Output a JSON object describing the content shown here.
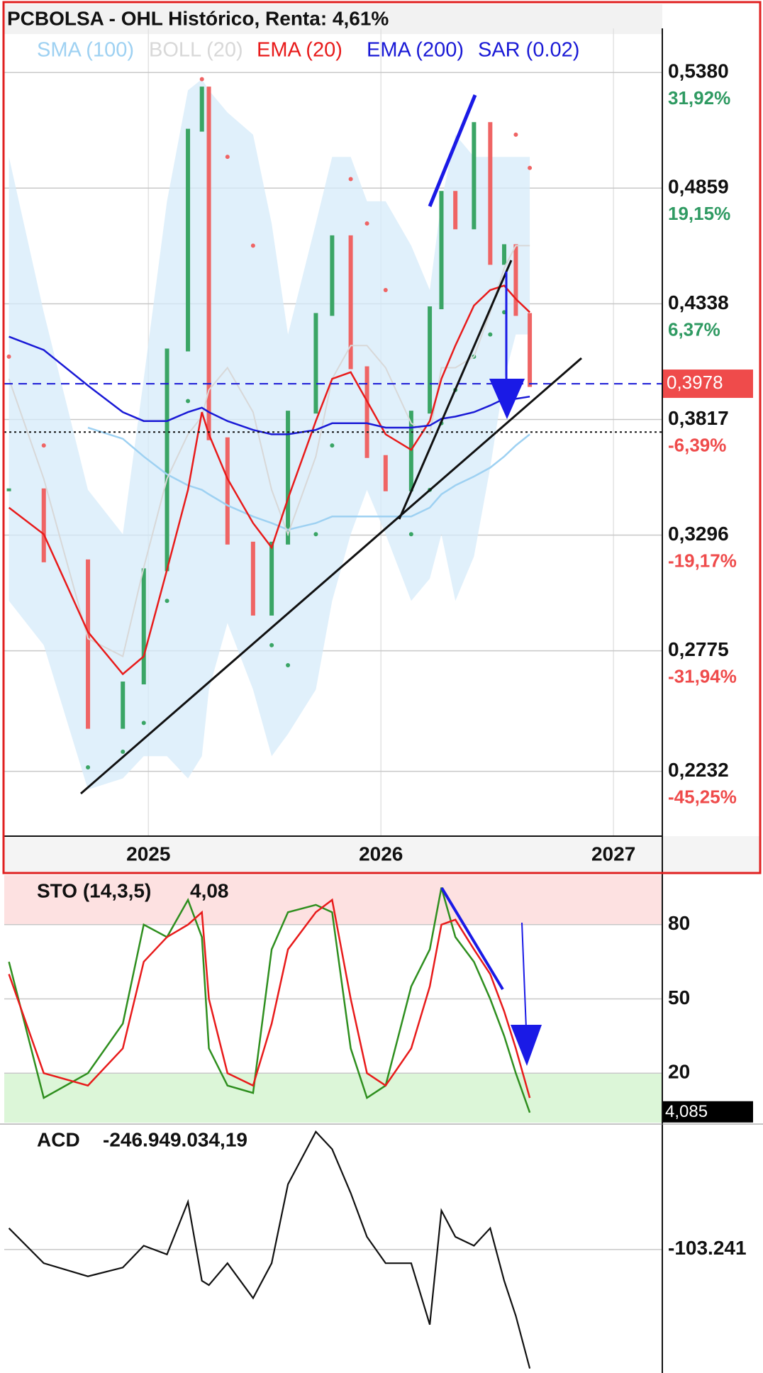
{
  "chart_data": [
    {
      "type": "ohl",
      "title": "PCBOLSA - OHL Histórico, Renta: 4,61%",
      "x": [
        2024.4,
        2024.55,
        2024.74,
        2024.89,
        2024.98,
        2025.08,
        2025.17,
        2025.23,
        2025.26,
        2025.34,
        2025.45,
        2025.53,
        2025.6,
        2025.72,
        2025.79,
        2025.87,
        2025.94,
        2026.02,
        2026.13,
        2026.21,
        2026.26,
        2026.32,
        2026.4,
        2026.47,
        2026.53,
        2026.58,
        2026.64
      ],
      "xlim": [
        2024.38,
        2027.21
      ],
      "xticks": [
        2025,
        2026,
        2027
      ],
      "ylim": [
        0.194,
        0.555
      ],
      "yticks": [
        {
          "value": 0.538,
          "label": "0,5380"
        },
        {
          "value": 0.4859,
          "label": "0,4859"
        },
        {
          "value": 0.4338,
          "label": "0,4338"
        },
        {
          "value": 0.3817,
          "label": "0,3817"
        },
        {
          "value": 0.3296,
          "label": "0,3296"
        },
        {
          "value": 0.2775,
          "label": "0,2775"
        },
        {
          "value": 0.2232,
          "label": "0,2232"
        }
      ],
      "return_labels": [
        {
          "value": 31.92,
          "label": "31,92%"
        },
        {
          "value": 19.15,
          "label": "19,15%"
        },
        {
          "value": 6.37,
          "label": "6,37%"
        },
        {
          "value": -6.39,
          "label": "-6,39%"
        },
        {
          "value": -19.17,
          "label": "-19,17%"
        },
        {
          "value": -31.94,
          "label": "-31,94%"
        },
        {
          "value": -45.25,
          "label": "-45,25%"
        }
      ],
      "price": {
        "color_up": "#3aa565",
        "color_down": "#ef6464",
        "values": [
          0.35,
          0.318,
          0.243,
          0.263,
          0.314,
          0.413,
          0.512,
          0.531,
          0.373,
          0.326,
          0.294,
          0.326,
          0.385,
          0.429,
          0.464,
          0.405,
          0.365,
          0.35,
          0.385,
          0.432,
          0.484,
          0.468,
          0.515,
          0.452,
          0.46,
          0.429,
          0.397
        ]
      },
      "series": [
        {
          "name": "SMA (100)",
          "color": "#9ed1f2",
          "style": "line",
          "values": [
            null,
            null,
            0.378,
            0.373,
            0.365,
            0.357,
            0.352,
            0.35,
            0.348,
            0.343,
            0.338,
            0.335,
            0.332,
            0.335,
            0.338,
            0.338,
            0.338,
            0.338,
            0.338,
            0.342,
            0.348,
            0.352,
            0.356,
            0.36,
            0.365,
            0.37,
            0.375
          ]
        },
        {
          "name": "BOLL (20)",
          "color": "#d8d8d8",
          "band_color": "#d6ebf9",
          "style": "band",
          "values": [
            0.4,
            0.355,
            0.283,
            0.275,
            0.315,
            0.355,
            0.375,
            0.383,
            0.395,
            0.405,
            0.385,
            0.35,
            0.33,
            0.365,
            0.4,
            0.415,
            0.415,
            0.405,
            0.38,
            0.375,
            0.405,
            0.405,
            0.41,
            0.43,
            0.45,
            0.46,
            0.46
          ],
          "upper": [
            0.5,
            0.43,
            0.35,
            0.33,
            0.4,
            0.48,
            0.53,
            0.535,
            0.53,
            0.52,
            0.51,
            0.47,
            0.42,
            0.47,
            0.5,
            0.5,
            0.48,
            0.48,
            0.46,
            0.44,
            0.48,
            0.51,
            0.5,
            0.5,
            0.5,
            0.5,
            0.5
          ],
          "lower": [
            0.3,
            0.28,
            0.215,
            0.22,
            0.23,
            0.23,
            0.22,
            0.23,
            0.26,
            0.29,
            0.26,
            0.23,
            0.24,
            0.26,
            0.3,
            0.33,
            0.35,
            0.33,
            0.3,
            0.31,
            0.33,
            0.3,
            0.32,
            0.36,
            0.4,
            0.42,
            0.42
          ]
        },
        {
          "name": "EMA (20)",
          "color": "#e81b1b",
          "style": "line",
          "values": [
            0.342,
            0.33,
            0.286,
            0.267,
            0.275,
            0.314,
            0.35,
            0.385,
            0.375,
            0.355,
            0.335,
            0.324,
            0.346,
            0.381,
            0.4,
            0.403,
            0.39,
            0.375,
            0.368,
            0.381,
            0.4,
            0.415,
            0.433,
            0.44,
            0.442,
            0.436,
            0.43
          ]
        },
        {
          "name": "EMA (200)",
          "color": "#1a1ad6",
          "style": "line",
          "values": [
            0.419,
            0.413,
            0.397,
            0.385,
            0.381,
            0.381,
            0.385,
            0.387,
            0.385,
            0.381,
            0.377,
            0.375,
            0.375,
            0.377,
            0.38,
            0.38,
            0.38,
            0.378,
            0.378,
            0.379,
            0.382,
            0.383,
            0.385,
            0.388,
            0.391,
            0.391,
            0.392
          ]
        },
        {
          "name": "SAR (0.02)",
          "color": "#1a1ad6",
          "style": "dots",
          "color_up": "#3aa565",
          "color_down": "#ef6464",
          "values": [
            0.41,
            0.37,
            0.225,
            0.232,
            0.245,
            0.3,
            0.39,
            0.535,
            0.53,
            0.5,
            0.46,
            0.28,
            0.271,
            0.33,
            0.37,
            0.49,
            0.47,
            0.44,
            0.33,
            0.35,
            0.38,
            0.395,
            0.41,
            0.42,
            0.43,
            0.51,
            0.495
          ]
        }
      ],
      "last_price": {
        "value": 0.3978,
        "label": "0,3978"
      },
      "dotted_level": 0.376
    },
    {
      "type": "stochastic",
      "title": "STO (14,3,5)",
      "title_value": "4,08",
      "x": [
        2024.4,
        2024.55,
        2024.74,
        2024.89,
        2024.98,
        2025.08,
        2025.17,
        2025.23,
        2025.26,
        2025.34,
        2025.45,
        2025.53,
        2025.6,
        2025.72,
        2025.79,
        2025.87,
        2025.94,
        2026.02,
        2026.13,
        2026.21,
        2026.26,
        2026.32,
        2026.4,
        2026.47,
        2026.53,
        2026.58,
        2026.64
      ],
      "xlim": [
        2024.38,
        2027.21
      ],
      "ylim": [
        0,
        100
      ],
      "yticks": [
        80,
        50,
        20
      ],
      "ytick_colors": [
        "#e81b1b",
        "#111111",
        "#1a9a1a"
      ],
      "overbought": 80,
      "oversold": 20,
      "series": [
        {
          "color": "#2f8f1f",
          "values": [
            65,
            10,
            20,
            40,
            80,
            75,
            90,
            75,
            30,
            15,
            12,
            70,
            85,
            88,
            85,
            30,
            10,
            15,
            55,
            70,
            95,
            75,
            65,
            50,
            35,
            20,
            4.08
          ]
        },
        {
          "color": "#e81b1b",
          "values": [
            60,
            20,
            15,
            30,
            65,
            75,
            80,
            85,
            50,
            20,
            15,
            40,
            70,
            85,
            90,
            50,
            20,
            15,
            30,
            55,
            80,
            82,
            70,
            60,
            45,
            30,
            10
          ]
        }
      ],
      "last_value": {
        "value": 4.085,
        "label": "4,085"
      }
    },
    {
      "type": "line",
      "title": "ACD",
      "title_value": "-246.949.034,19",
      "x": [
        2024.4,
        2024.55,
        2024.74,
        2024.89,
        2024.98,
        2025.08,
        2025.17,
        2025.23,
        2025.26,
        2025.34,
        2025.45,
        2025.53,
        2025.6,
        2025.72,
        2025.79,
        2025.87,
        2025.94,
        2026.02,
        2026.13,
        2026.21,
        2026.26,
        2026.32,
        2026.4,
        2026.47,
        2026.53,
        2026.58,
        2026.64
      ],
      "xlim": [
        2024.38,
        2027.21
      ],
      "ylim": [
        -249000000,
        46500000
      ],
      "yticks": [
        {
          "value": -103241000,
          "label": "-103.241"
        }
      ],
      "color": "#111111",
      "values": [
        -77500000,
        -119800000,
        -135700000,
        -125100000,
        -98700000,
        -109200000,
        -45700000,
        -141000000,
        -146300000,
        -119800000,
        -162000000,
        -119800000,
        -24500000,
        39000000,
        17900000,
        -35100000,
        -88000000,
        -119800000,
        -119800000,
        -194000000,
        -56300000,
        -88000000,
        -98700000,
        -77500000,
        -141000000,
        -183400000,
        -246949034.19
      ]
    }
  ]
}
